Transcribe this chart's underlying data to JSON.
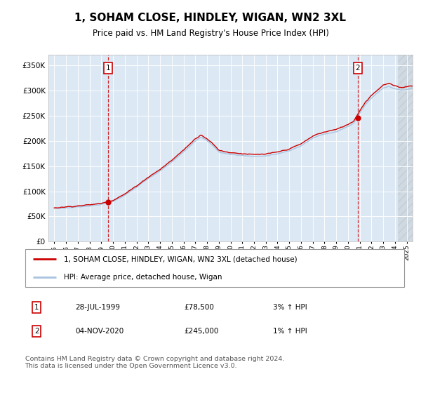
{
  "title": "1, SOHAM CLOSE, HINDLEY, WIGAN, WN2 3XL",
  "subtitle": "Price paid vs. HM Land Registry's House Price Index (HPI)",
  "plot_bg_color": "#dce9f5",
  "hpi_color": "#a8c4e0",
  "price_color": "#cc0000",
  "sale1_date": 1999.57,
  "sale1_price": 78500,
  "sale1_label": "28-JUL-1999",
  "sale1_pct": "3%",
  "sale2_date": 2020.84,
  "sale2_price": 245000,
  "sale2_label": "04-NOV-2020",
  "sale2_pct": "1%",
  "ylim": [
    0,
    370000
  ],
  "xlim_start": 1994.5,
  "xlim_end": 2025.5,
  "footer": "Contains HM Land Registry data © Crown copyright and database right 2024.\nThis data is licensed under the Open Government Licence v3.0.",
  "legend_line1": "1, SOHAM CLOSE, HINDLEY, WIGAN, WN2 3XL (detached house)",
  "legend_line2": "HPI: Average price, detached house, Wigan"
}
